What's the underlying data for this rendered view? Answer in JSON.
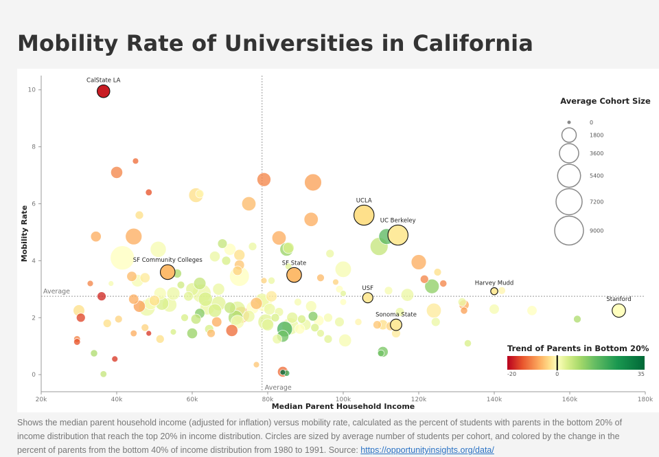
{
  "page": {
    "title": "Mobility Rate of Universities in California",
    "caption_text": "Shows the median parent household income (adjusted for inflation) versus mobility rate, calculated as the percent of students with parents in the bottom 20% of income distribution that reach the top 20% in income distribution. Circles are sized by average number of students per cohort, and colored by the change in the percent of parents from the bottom 40% of income distribution from 1980 to 1991. Source: ",
    "caption_link": "https://opportunityinsights.org/data/"
  },
  "chart_data": {
    "type": "scatter",
    "title": "Mobility Rate of Universities in California",
    "xlabel": "Median Parent Household Income",
    "ylabel": "Mobility Rate",
    "xlim": [
      20000,
      180000
    ],
    "ylim": [
      -0.6,
      10.5
    ],
    "x_ticks": [
      20000,
      40000,
      60000,
      80000,
      100000,
      120000,
      140000,
      160000,
      180000
    ],
    "x_tick_labels": [
      "20k",
      "40k",
      "60k",
      "80k",
      "100k",
      "120k",
      "140k",
      "160k",
      "180k"
    ],
    "y_ticks": [
      0,
      2,
      4,
      6,
      8,
      10
    ],
    "y_tick_labels": [
      "0",
      "2",
      "4",
      "6",
      "8",
      "10"
    ],
    "average_line_label": "Average",
    "average_x": 78500,
    "average_y": 2.75,
    "size_legend": {
      "title": "Average Cohort Size",
      "values": [
        0,
        1800,
        3600,
        5400,
        7200,
        9000
      ],
      "labels": [
        "0",
        "1800",
        "3600",
        "5400",
        "7200",
        "9000"
      ]
    },
    "color_legend": {
      "title": "Trend of Parents in Bottom 20%",
      "min": -20,
      "max": 35,
      "marker": 0,
      "tick_labels": [
        "-20",
        "0",
        "35"
      ],
      "colors": [
        "#b8001e",
        "#e8542c",
        "#fdae61",
        "#fee08b",
        "#ffffbf",
        "#d9ef8b",
        "#a6d96a",
        "#66bd63",
        "#1a9850",
        "#006837"
      ]
    },
    "labeled_points": [
      {
        "name": "CalState LA",
        "x": 36500,
        "y": 9.95,
        "size": 1300,
        "trend": -18
      },
      {
        "name": "SF Community Colleges",
        "x": 53500,
        "y": 3.6,
        "size": 1900,
        "trend": -6
      },
      {
        "name": "SF State",
        "x": 87000,
        "y": 3.5,
        "size": 1900,
        "trend": -6
      },
      {
        "name": "UCLA",
        "x": 105500,
        "y": 5.6,
        "size": 4000,
        "trend": -3
      },
      {
        "name": "UC Berkeley",
        "x": 114500,
        "y": 4.9,
        "size": 4000,
        "trend": -2
      },
      {
        "name": "USF",
        "x": 106500,
        "y": 2.7,
        "size": 750,
        "trend": -2
      },
      {
        "name": "Sonoma State",
        "x": 114000,
        "y": 1.75,
        "size": 1000,
        "trend": -2
      },
      {
        "name": "Harvey Mudd",
        "x": 140000,
        "y": 2.93,
        "size": 250,
        "trend": -2
      },
      {
        "name": "Stanford",
        "x": 173000,
        "y": 2.25,
        "size": 1500,
        "trend": 0
      }
    ],
    "points": [
      [
        36500,
        9.95,
        1300,
        -18
      ],
      [
        40000,
        7.1,
        1100,
        -10
      ],
      [
        45000,
        7.5,
        150,
        -12
      ],
      [
        48500,
        6.4,
        200,
        -14
      ],
      [
        79000,
        6.85,
        1600,
        -10
      ],
      [
        92000,
        6.75,
        2700,
        -8
      ],
      [
        61000,
        6.3,
        1800,
        -3
      ],
      [
        62000,
        6.35,
        400,
        -1
      ],
      [
        75000,
        6.0,
        1700,
        -6
      ],
      [
        91500,
        5.45,
        1700,
        -7
      ],
      [
        46000,
        5.6,
        400,
        -3
      ],
      [
        34500,
        4.85,
        800,
        -7
      ],
      [
        44500,
        4.85,
        2500,
        -7
      ],
      [
        83000,
        4.8,
        1700,
        -7
      ],
      [
        68000,
        4.6,
        600,
        6
      ],
      [
        51000,
        4.4,
        2300,
        1
      ],
      [
        70000,
        4.4,
        1100,
        0
      ],
      [
        72500,
        4.2,
        900,
        -3
      ],
      [
        85000,
        4.4,
        1500,
        10
      ],
      [
        85500,
        4.45,
        900,
        4
      ],
      [
        41500,
        4.1,
        6000,
        0
      ],
      [
        120000,
        3.95,
        2000,
        -7
      ],
      [
        72500,
        3.85,
        700,
        -5
      ],
      [
        72000,
        3.65,
        600,
        -4
      ],
      [
        44000,
        3.45,
        700,
        -6
      ],
      [
        100000,
        3.7,
        2400,
        1
      ],
      [
        109500,
        4.5,
        3000,
        6
      ],
      [
        111500,
        4.85,
        2200,
        16
      ],
      [
        125000,
        3.6,
        300,
        -3
      ],
      [
        121500,
        3.35,
        400,
        -10
      ],
      [
        123500,
        3.1,
        1800,
        11
      ],
      [
        126500,
        3.2,
        250,
        -10
      ],
      [
        45500,
        3.3,
        1200,
        1
      ],
      [
        47500,
        3.4,
        700,
        -2
      ],
      [
        56000,
        3.55,
        500,
        8
      ],
      [
        57000,
        3.15,
        300,
        5
      ],
      [
        62000,
        3.2,
        1200,
        6
      ],
      [
        72500,
        3.45,
        3800,
        0
      ],
      [
        67000,
        3.0,
        1100,
        2
      ],
      [
        38500,
        3.2,
        100,
        1
      ],
      [
        33000,
        3.2,
        150,
        -10
      ],
      [
        36000,
        2.75,
        500,
        -17
      ],
      [
        30000,
        2.25,
        1000,
        -3
      ],
      [
        30500,
        2.0,
        500,
        -15
      ],
      [
        44500,
        2.65,
        700,
        -7
      ],
      [
        46000,
        2.4,
        1100,
        -8
      ],
      [
        48000,
        2.35,
        2500,
        2
      ],
      [
        50000,
        2.6,
        800,
        -3
      ],
      [
        49000,
        2.5,
        1300,
        1
      ],
      [
        52000,
        2.5,
        1500,
        4
      ],
      [
        51500,
        2.85,
        1200,
        1
      ],
      [
        54000,
        2.45,
        1800,
        2
      ],
      [
        55000,
        2.85,
        1400,
        2
      ],
      [
        59000,
        2.75,
        600,
        3
      ],
      [
        60000,
        3.0,
        1300,
        3
      ],
      [
        62500,
        2.85,
        3400,
        2
      ],
      [
        63500,
        2.65,
        1700,
        4
      ],
      [
        64000,
        2.35,
        1800,
        2
      ],
      [
        66000,
        2.25,
        1500,
        4
      ],
      [
        62000,
        2.15,
        700,
        12
      ],
      [
        67000,
        2.5,
        1800,
        3
      ],
      [
        70000,
        2.35,
        1000,
        6
      ],
      [
        71500,
        2.0,
        1900,
        8
      ],
      [
        73000,
        2.1,
        2500,
        -8
      ],
      [
        72000,
        1.85,
        1500,
        1
      ],
      [
        75000,
        2.05,
        1100,
        2
      ],
      [
        76000,
        2.35,
        1300,
        0
      ],
      [
        77000,
        2.5,
        1100,
        -6
      ],
      [
        78500,
        2.6,
        1800,
        2
      ],
      [
        79000,
        2.5,
        2400,
        0
      ],
      [
        80500,
        2.3,
        1000,
        2
      ],
      [
        81000,
        2.75,
        900,
        -2
      ],
      [
        82000,
        2.0,
        400,
        4
      ],
      [
        79500,
        1.85,
        2200,
        3
      ],
      [
        80000,
        1.75,
        1100,
        3
      ],
      [
        83000,
        2.2,
        500,
        2
      ],
      [
        84500,
        1.6,
        2100,
        18
      ],
      [
        84000,
        1.35,
        1100,
        14
      ],
      [
        86500,
        2.0,
        900,
        3
      ],
      [
        86000,
        1.7,
        2600,
        2
      ],
      [
        88500,
        1.6,
        700,
        0
      ],
      [
        90000,
        1.75,
        900,
        2
      ],
      [
        91500,
        2.4,
        900,
        1
      ],
      [
        92000,
        2.05,
        600,
        12
      ],
      [
        93500,
        1.9,
        800,
        0
      ],
      [
        96000,
        2.0,
        500,
        1
      ],
      [
        99000,
        1.85,
        600,
        2
      ],
      [
        92500,
        1.65,
        400,
        4
      ],
      [
        94000,
        1.45,
        300,
        3
      ],
      [
        96000,
        1.25,
        400,
        3
      ],
      [
        100500,
        1.2,
        1300,
        1
      ],
      [
        104000,
        1.85,
        250,
        -1
      ],
      [
        109000,
        1.75,
        400,
        -5
      ],
      [
        110500,
        1.75,
        700,
        -3
      ],
      [
        112500,
        1.7,
        500,
        -4
      ],
      [
        114000,
        1.45,
        500,
        -2
      ],
      [
        115000,
        2.2,
        500,
        2
      ],
      [
        117000,
        2.8,
        1300,
        2
      ],
      [
        110500,
        0.8,
        800,
        13
      ],
      [
        110000,
        0.75,
        200,
        14
      ],
      [
        124000,
        2.25,
        1900,
        -2
      ],
      [
        124500,
        1.85,
        500,
        2
      ],
      [
        132000,
        2.45,
        700,
        -7
      ],
      [
        132000,
        2.25,
        250,
        -8
      ],
      [
        133000,
        1.1,
        250,
        4
      ],
      [
        140000,
        2.3,
        700,
        1
      ],
      [
        150000,
        2.25,
        700,
        0
      ],
      [
        162000,
        1.95,
        300,
        8
      ],
      [
        60000,
        1.45,
        800,
        10
      ],
      [
        55000,
        1.5,
        150,
        4
      ],
      [
        51500,
        1.25,
        400,
        -3
      ],
      [
        47500,
        1.65,
        300,
        -4
      ],
      [
        48500,
        1.45,
        100,
        -16
      ],
      [
        44500,
        1.45,
        200,
        -7
      ],
      [
        40500,
        1.95,
        300,
        -4
      ],
      [
        37500,
        1.8,
        400,
        -3
      ],
      [
        29500,
        1.25,
        200,
        -10
      ],
      [
        29500,
        1.15,
        200,
        -14
      ],
      [
        39500,
        0.55,
        150,
        -16
      ],
      [
        34000,
        0.75,
        250,
        8
      ],
      [
        36500,
        0.02,
        200,
        6
      ],
      [
        84000,
        0.1,
        800,
        -12
      ],
      [
        84000,
        0.08,
        100,
        35
      ],
      [
        85000,
        0.05,
        150,
        20
      ],
      [
        77000,
        0.35,
        150,
        -5
      ],
      [
        58000,
        2.0,
        300,
        4
      ],
      [
        65000,
        1.45,
        400,
        -6
      ],
      [
        66500,
        1.85,
        700,
        -7
      ],
      [
        70500,
        1.55,
        1100,
        -12
      ],
      [
        72000,
        2.3,
        2200,
        3
      ],
      [
        88000,
        2.55,
        300,
        1
      ],
      [
        89000,
        1.95,
        400,
        4
      ],
      [
        81000,
        3.3,
        250,
        2
      ],
      [
        79000,
        3.3,
        150,
        -4
      ],
      [
        85500,
        3.8,
        200,
        3
      ],
      [
        94000,
        3.4,
        300,
        -6
      ],
      [
        98000,
        3.25,
        150,
        -4
      ],
      [
        99000,
        3.0,
        300,
        0
      ],
      [
        100000,
        2.85,
        150,
        3
      ],
      [
        100000,
        2.55,
        200,
        0
      ],
      [
        112000,
        2.95,
        400,
        1
      ],
      [
        131500,
        2.55,
        400,
        2
      ],
      [
        142000,
        2.95,
        300,
        -1
      ],
      [
        96500,
        4.25,
        400,
        2
      ],
      [
        66000,
        4.15,
        800,
        2
      ],
      [
        69000,
        4.0,
        500,
        4
      ],
      [
        76000,
        4.5,
        400,
        2
      ],
      [
        61000,
        1.95,
        700,
        6
      ],
      [
        64500,
        1.6,
        500,
        4
      ],
      [
        82500,
        1.25,
        600,
        2
      ]
    ]
  }
}
